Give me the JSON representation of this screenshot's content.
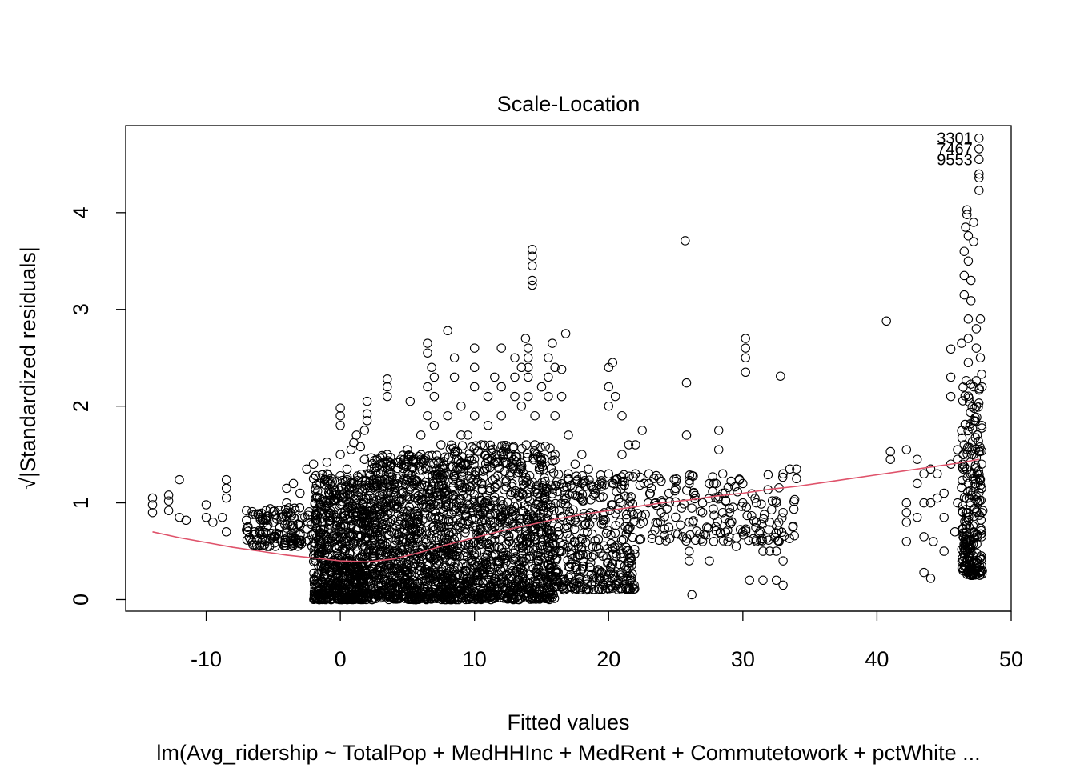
{
  "chart_data": {
    "type": "scatter",
    "title": "Scale-Location",
    "xlabel": "Fitted values",
    "ylabel": "√|Standardized residuals|",
    "sub_caption": "lm(Avg_ridership ~ TotalPop + MedHHInc + MedRent + Commutetowork + pctWhite ...",
    "xlim": [
      -16,
      50
    ],
    "ylim": [
      -0.12,
      4.9
    ],
    "x_ticks": [
      -10,
      0,
      10,
      20,
      30,
      40,
      50
    ],
    "y_ticks": [
      0,
      1,
      2,
      3,
      4
    ],
    "x_tick_labels": [
      "-10",
      "0",
      "10",
      "20",
      "30",
      "40",
      "50"
    ],
    "y_tick_labels": [
      "0",
      "1",
      "2",
      "3",
      "4"
    ],
    "grid": false,
    "point_color": "#000000",
    "smooth_color": "#DF536B",
    "smoother": {
      "x": [
        -14,
        -12,
        -10,
        -8,
        -6,
        -4,
        -2,
        0,
        2,
        4,
        6,
        8,
        10,
        12,
        14,
        16,
        18,
        20,
        22,
        24,
        26,
        28,
        30,
        32,
        34,
        36,
        38,
        40,
        42,
        44,
        46,
        47.6
      ],
      "y": [
        0.7,
        0.64,
        0.59,
        0.54,
        0.5,
        0.46,
        0.43,
        0.4,
        0.39,
        0.42,
        0.49,
        0.57,
        0.64,
        0.71,
        0.77,
        0.83,
        0.88,
        0.92,
        0.96,
        1.0,
        1.03,
        1.07,
        1.1,
        1.14,
        1.17,
        1.21,
        1.25,
        1.29,
        1.33,
        1.37,
        1.41,
        1.45
      ]
    },
    "labeled_outliers": [
      {
        "label": "3301",
        "x": 47.6,
        "y": 4.77
      },
      {
        "label": "7467",
        "x": 47.6,
        "y": 4.66
      },
      {
        "label": "9553",
        "x": 47.6,
        "y": 4.55
      }
    ],
    "points": [
      [
        -14,
        0.9
      ],
      [
        -14,
        0.98
      ],
      [
        -14,
        1.05
      ],
      [
        -12.8,
        0.92
      ],
      [
        -12.8,
        1.02
      ],
      [
        -12.8,
        1.08
      ],
      [
        -12,
        1.24
      ],
      [
        -12,
        0.85
      ],
      [
        -11.5,
        0.82
      ],
      [
        -10,
        0.85
      ],
      [
        -10,
        0.98
      ],
      [
        -9.5,
        0.8
      ],
      [
        -8.8,
        0.85
      ],
      [
        -8.5,
        1.05
      ],
      [
        -8.5,
        1.15
      ],
      [
        -8.5,
        1.24
      ],
      [
        -8.5,
        0.7
      ],
      [
        -7,
        0.72
      ],
      [
        -7,
        0.82
      ],
      [
        -7,
        0.92
      ],
      [
        -6,
        0.7
      ],
      [
        -6,
        0.85
      ],
      [
        -5.5,
        0.75
      ],
      [
        -5,
        0.8
      ],
      [
        -4,
        1.15
      ],
      [
        -4,
        1.0
      ],
      [
        -4,
        0.9
      ],
      [
        -3.5,
        1.2
      ],
      [
        -3,
        1.1
      ],
      [
        -2.5,
        1.35
      ],
      [
        -2,
        1.25
      ],
      [
        -2,
        1.4
      ],
      [
        -1.5,
        1.2
      ],
      [
        -1,
        1.3
      ],
      [
        -1,
        1.42
      ],
      [
        0,
        1.98
      ],
      [
        0,
        1.9
      ],
      [
        0,
        1.8
      ],
      [
        0,
        1.5
      ],
      [
        0.5,
        1.35
      ],
      [
        0.8,
        1.55
      ],
      [
        1,
        1.62
      ],
      [
        1.2,
        1.7
      ],
      [
        1.5,
        1.58
      ],
      [
        1.8,
        1.75
      ],
      [
        1.8,
        1.45
      ],
      [
        2,
        1.85
      ],
      [
        2,
        1.92
      ],
      [
        2,
        2.05
      ],
      [
        2,
        1.3
      ],
      [
        3,
        1.3
      ],
      [
        3.5,
        1.5
      ],
      [
        3.5,
        2.1
      ],
      [
        3.5,
        2.2
      ],
      [
        3.5,
        2.28
      ],
      [
        4,
        1.2
      ],
      [
        4.5,
        1.45
      ],
      [
        5,
        1.55
      ],
      [
        5,
        1.3
      ],
      [
        5.2,
        2.05
      ],
      [
        5.5,
        1.2
      ],
      [
        6,
        1.45
      ],
      [
        6,
        1.7
      ],
      [
        6.5,
        1.9
      ],
      [
        6.5,
        2.2
      ],
      [
        6.5,
        2.55
      ],
      [
        6.5,
        2.65
      ],
      [
        6.8,
        2.4
      ],
      [
        7,
        2.3
      ],
      [
        7,
        2.1
      ],
      [
        7,
        1.8
      ],
      [
        7.5,
        1.6
      ],
      [
        7.5,
        1.25
      ],
      [
        8,
        1.9
      ],
      [
        8,
        2.78
      ],
      [
        8.5,
        1.5
      ],
      [
        8.5,
        2.3
      ],
      [
        8.5,
        2.5
      ],
      [
        9,
        1.7
      ],
      [
        9,
        2.0
      ],
      [
        9.5,
        1.4
      ],
      [
        9.5,
        1.7
      ],
      [
        10,
        2.2
      ],
      [
        10,
        2.4
      ],
      [
        10,
        2.6
      ],
      [
        10,
        1.9
      ],
      [
        10.5,
        1.2
      ],
      [
        10.5,
        1.6
      ],
      [
        11,
        1.8
      ],
      [
        11,
        2.1
      ],
      [
        11.5,
        2.3
      ],
      [
        12,
        2.6
      ],
      [
        12,
        2.2
      ],
      [
        12,
        1.9
      ],
      [
        12.5,
        1.5
      ],
      [
        13,
        2.5
      ],
      [
        13,
        2.1
      ],
      [
        13,
        2.3
      ],
      [
        13.5,
        2.0
      ],
      [
        13.5,
        2.4
      ],
      [
        13.8,
        2.7
      ],
      [
        14,
        2.6
      ],
      [
        14,
        2.5
      ],
      [
        14,
        2.4
      ],
      [
        14,
        2.3
      ],
      [
        14,
        2.1
      ],
      [
        14.3,
        3.25
      ],
      [
        14.3,
        3.3
      ],
      [
        14.3,
        3.45
      ],
      [
        14.3,
        3.55
      ],
      [
        14.3,
        3.62
      ],
      [
        14.5,
        1.6
      ],
      [
        14.5,
        1.9
      ],
      [
        15,
        2.2
      ],
      [
        15,
        1.4
      ],
      [
        15.5,
        2.1
      ],
      [
        15.5,
        2.3
      ],
      [
        15.5,
        2.5
      ],
      [
        15.8,
        2.65
      ],
      [
        16,
        2.4
      ],
      [
        16,
        1.9
      ],
      [
        16,
        1.5
      ],
      [
        16.5,
        2.1
      ],
      [
        16.5,
        2.38
      ],
      [
        16.8,
        2.75
      ],
      [
        17,
        1.7
      ],
      [
        17,
        1.3
      ],
      [
        17.5,
        1.4
      ],
      [
        18,
        1.5
      ],
      [
        18,
        1.2
      ],
      [
        18.5,
        1.35
      ],
      [
        19,
        1.1
      ],
      [
        19.5,
        1.2
      ],
      [
        20,
        1.3
      ],
      [
        20,
        2.4
      ],
      [
        20,
        2.2
      ],
      [
        20,
        2.0
      ],
      [
        20.3,
        2.45
      ],
      [
        20.5,
        2.1
      ],
      [
        21,
        1.9
      ],
      [
        21,
        1.5
      ],
      [
        21.5,
        1.6
      ],
      [
        22,
        1.6
      ],
      [
        22,
        1.3
      ],
      [
        22.5,
        1.75
      ],
      [
        23,
        1.3
      ],
      [
        23,
        1.2
      ],
      [
        23.5,
        1.0
      ],
      [
        24,
        1.0
      ],
      [
        24.5,
        1.1
      ],
      [
        25,
        1.15
      ],
      [
        25.7,
        3.71
      ],
      [
        25.8,
        2.24
      ],
      [
        25.8,
        1.7
      ],
      [
        26,
        1.2
      ],
      [
        26,
        0.5
      ],
      [
        26,
        0.4
      ],
      [
        26,
        0.8
      ],
      [
        26.2,
        0.05
      ],
      [
        27,
        1.0
      ],
      [
        27,
        0.9
      ],
      [
        27,
        0.6
      ],
      [
        27.5,
        1.2
      ],
      [
        27.5,
        0.4
      ],
      [
        28,
        1.2
      ],
      [
        28.2,
        1.75
      ],
      [
        28.2,
        1.55
      ],
      [
        28.5,
        1.3
      ],
      [
        28.5,
        1.1
      ],
      [
        28.5,
        0.9
      ],
      [
        29,
        0.9
      ],
      [
        29,
        0.8
      ],
      [
        29.5,
        0.55
      ],
      [
        30,
        1.2
      ],
      [
        30,
        0.7
      ],
      [
        30,
        1.0
      ],
      [
        30.2,
        2.7
      ],
      [
        30.2,
        2.6
      ],
      [
        30.2,
        2.5
      ],
      [
        30.2,
        2.35
      ],
      [
        30.5,
        0.2
      ],
      [
        31,
        0.6
      ],
      [
        31,
        0.8
      ],
      [
        31,
        1.0
      ],
      [
        31.5,
        0.5
      ],
      [
        31.5,
        0.2
      ],
      [
        32,
        0.5
      ],
      [
        32,
        0.8
      ],
      [
        32.5,
        1.0
      ],
      [
        32.5,
        0.5
      ],
      [
        32.5,
        0.2
      ],
      [
        32.8,
        2.31
      ],
      [
        33,
        1.3
      ],
      [
        33,
        0.9
      ],
      [
        33,
        0.4
      ],
      [
        33,
        0.15
      ],
      [
        33.5,
        1.35
      ],
      [
        34,
        1.25
      ],
      [
        34,
        1.35
      ],
      [
        40.7,
        2.88
      ],
      [
        41,
        1.53
      ],
      [
        41,
        1.45
      ],
      [
        42.2,
        1.55
      ],
      [
        42.2,
        0.9
      ],
      [
        42.2,
        0.8
      ],
      [
        42.2,
        0.6
      ],
      [
        42.2,
        1.0
      ],
      [
        43,
        1.45
      ],
      [
        43,
        1.2
      ],
      [
        43,
        0.85
      ],
      [
        43.5,
        1.3
      ],
      [
        43.5,
        1.0
      ],
      [
        43.5,
        0.65
      ],
      [
        43.5,
        0.28
      ],
      [
        44,
        0.22
      ],
      [
        44,
        1.35
      ],
      [
        44,
        1.0
      ],
      [
        44.2,
        0.6
      ],
      [
        44.5,
        1.05
      ],
      [
        44.5,
        1.3
      ],
      [
        45,
        0.85
      ],
      [
        45,
        0.5
      ],
      [
        45,
        1.1
      ],
      [
        45.5,
        1.4
      ],
      [
        45.5,
        2.1
      ],
      [
        45.5,
        2.3
      ],
      [
        45.5,
        2.59
      ],
      [
        45.8,
        0.7
      ],
      [
        46,
        1.45
      ],
      [
        46,
        1.55
      ],
      [
        46,
        1.0
      ],
      [
        46.3,
        2.65
      ],
      [
        46.5,
        3.35
      ],
      [
        46.5,
        3.6
      ],
      [
        46.5,
        3.15
      ],
      [
        46.5,
        1.6
      ],
      [
        46.6,
        3.85
      ],
      [
        46.7,
        3.98
      ],
      [
        46.7,
        4.03
      ],
      [
        46.8,
        3.5
      ],
      [
        46.8,
        2.9
      ],
      [
        46.8,
        2.7
      ],
      [
        46.8,
        2.45
      ],
      [
        46.8,
        3.76
      ],
      [
        46.8,
        1.2
      ],
      [
        46.8,
        0.9
      ],
      [
        46.8,
        0.6
      ],
      [
        46.8,
        0.3
      ],
      [
        47,
        0.25
      ],
      [
        47,
        3.09
      ],
      [
        47,
        3.3
      ],
      [
        47.2,
        3.7
      ],
      [
        47.2,
        3.9
      ],
      [
        47.2,
        2.2
      ],
      [
        47.2,
        1.85
      ],
      [
        47.2,
        1.5
      ],
      [
        47.2,
        0.45
      ],
      [
        47.2,
        0.7
      ],
      [
        47.4,
        2.6
      ],
      [
        47.4,
        2.8
      ],
      [
        47.4,
        2.0
      ],
      [
        47.5,
        1.0
      ],
      [
        47.5,
        0.65
      ],
      [
        47.5,
        0.35
      ],
      [
        47.6,
        4.23
      ],
      [
        47.6,
        4.36
      ],
      [
        47.6,
        4.4
      ],
      [
        47.6,
        4.77
      ],
      [
        47.6,
        4.66
      ],
      [
        47.6,
        4.55
      ],
      [
        47.7,
        2.5
      ],
      [
        47.7,
        2.9
      ],
      [
        47.8,
        2.33
      ],
      [
        47.8,
        1.8
      ],
      [
        47.8,
        1.4
      ],
      [
        47.8,
        1.15
      ],
      [
        47.8,
        0.9
      ],
      [
        47.8,
        0.65
      ]
    ],
    "dense_region": {
      "note_free": true,
      "bands": [
        {
          "x_from": -7,
          "x_to": -2,
          "y_min": 0.55,
          "y_max": 0.95,
          "count": 140
        },
        {
          "x_from": -2,
          "x_to": 2,
          "y_min": 0.0,
          "y_max": 1.3,
          "count": 700
        },
        {
          "x_from": 2,
          "x_to": 8,
          "y_min": 0.0,
          "y_max": 1.5,
          "count": 900
        },
        {
          "x_from": 8,
          "x_to": 16,
          "y_min": 0.0,
          "y_max": 1.6,
          "count": 1000
        },
        {
          "x_from": 16,
          "x_to": 22,
          "y_min": 0.1,
          "y_max": 1.3,
          "count": 350
        },
        {
          "x_from": 22,
          "x_to": 34,
          "y_min": 0.6,
          "y_max": 1.3,
          "count": 160
        },
        {
          "x_from": 46.3,
          "x_to": 47.9,
          "y_min": 0.25,
          "y_max": 2.3,
          "count": 220
        }
      ]
    }
  }
}
